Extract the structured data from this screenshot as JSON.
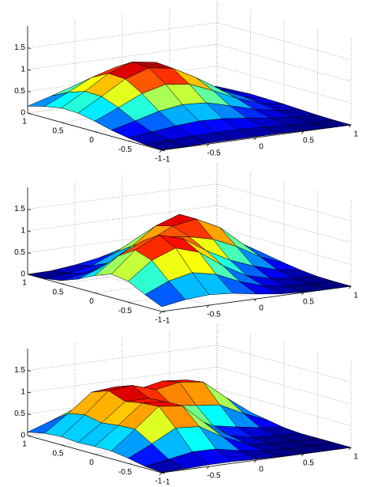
{
  "chart_data": [
    {
      "type": "surface",
      "x": [
        -1,
        -0.75,
        -0.5,
        -0.25,
        0,
        0.25,
        0.5,
        0.75,
        1
      ],
      "y": [
        -1,
        -0.75,
        -0.5,
        -0.25,
        0,
        0.25,
        0.5,
        0.75,
        1
      ],
      "z": [
        [
          0.01,
          0.02,
          0.07,
          0.14,
          0.24,
          0.32,
          0.33,
          0.26,
          0.16
        ],
        [
          0.01,
          0.05,
          0.13,
          0.28,
          0.48,
          0.63,
          0.64,
          0.51,
          0.32
        ],
        [
          0.02,
          0.07,
          0.2,
          0.43,
          0.73,
          0.96,
          0.98,
          0.78,
          0.49
        ],
        [
          0.02,
          0.08,
          0.24,
          0.51,
          0.87,
          1.14,
          1.17,
          0.94,
          0.58
        ],
        [
          0.02,
          0.08,
          0.22,
          0.48,
          0.8,
          1.06,
          1.09,
          0.87,
          0.54
        ],
        [
          0.02,
          0.06,
          0.16,
          0.34,
          0.58,
          0.77,
          0.78,
          0.63,
          0.39
        ],
        [
          0.01,
          0.03,
          0.09,
          0.19,
          0.33,
          0.43,
          0.44,
          0.35,
          0.22
        ],
        [
          0,
          0.01,
          0.04,
          0.08,
          0.14,
          0.19,
          0.19,
          0.15,
          0.1
        ],
        [
          0,
          0,
          0.01,
          0.03,
          0.05,
          0.06,
          0.07,
          0.05,
          0.03
        ]
      ],
      "xlim": [
        -1,
        1
      ],
      "ylim": [
        -1,
        1
      ],
      "zlim": [
        0,
        2
      ],
      "xticks": [
        -1,
        -0.5,
        0,
        0.5,
        1
      ],
      "yticks": [
        -1,
        -0.5,
        0,
        0.5,
        1
      ],
      "zticks": [
        0,
        0.5,
        1,
        1.5
      ],
      "grid": true,
      "colormap": "jet"
    },
    {
      "type": "surface",
      "x": [
        -1,
        -0.75,
        -0.5,
        -0.25,
        0,
        0.25,
        0.5,
        0.75,
        1
      ],
      "y": [
        -1,
        -0.75,
        -0.5,
        -0.25,
        0,
        0.25,
        0.5,
        0.75,
        1
      ],
      "z": [
        [
          0.11,
          0.28,
          0.48,
          0.54,
          0.4,
          0.21,
          0.07,
          0.01,
          0
        ],
        [
          0.2,
          0.52,
          0.89,
          1.02,
          0.78,
          0.41,
          0.16,
          0.06,
          0.01
        ],
        [
          0.24,
          0.64,
          1.1,
          1.29,
          1.04,
          0.64,
          0.33,
          0.16,
          0.07
        ],
        [
          0.2,
          0.53,
          0.93,
          1.14,
          1.07,
          0.87,
          0.65,
          0.39,
          0.16
        ],
        [
          0.11,
          0.29,
          0.55,
          0.79,
          1,
          1.14,
          1.04,
          0.68,
          0.31
        ],
        [
          0.04,
          0.12,
          0.25,
          0.5,
          0.87,
          1.23,
          1.23,
          0.83,
          0.38
        ],
        [
          0.01,
          0.03,
          0.11,
          0.29,
          0.63,
          0.96,
          0.99,
          0.67,
          0.31
        ],
        [
          0,
          0.01,
          0.04,
          0.13,
          0.32,
          0.5,
          0.53,
          0.36,
          0.16
        ],
        [
          0,
          0,
          0.01,
          0.05,
          0.11,
          0.18,
          0.18,
          0.13,
          0.06
        ]
      ],
      "xlim": [
        -1,
        1
      ],
      "ylim": [
        -1,
        1
      ],
      "zlim": [
        0,
        2
      ],
      "xticks": [
        -1,
        -0.5,
        0,
        0.5,
        1
      ],
      "yticks": [
        -1,
        -0.5,
        0,
        0.5,
        1
      ],
      "zticks": [
        0,
        0.5,
        1,
        1.5
      ],
      "grid": true,
      "colormap": "jet"
    },
    {
      "type": "surface",
      "x": [
        -1,
        -0.75,
        -0.5,
        -0.25,
        0,
        0.25,
        0.5,
        0.75,
        1
      ],
      "y": [
        -1,
        -0.75,
        -0.5,
        -0.25,
        0,
        0.25,
        0.5,
        0.75,
        1
      ],
      "z": [
        [
          0.01,
          0.04,
          0.12,
          0.18,
          0.18,
          0.16,
          0.19,
          0.16,
          0.08
        ],
        [
          0.02,
          0.13,
          0.38,
          0.61,
          0.59,
          0.54,
          0.62,
          0.54,
          0.27
        ],
        [
          0.04,
          0.23,
          0.67,
          1.06,
          1.03,
          0.96,
          1.1,
          0.96,
          0.48
        ],
        [
          0.04,
          0.22,
          0.63,
          1,
          0.99,
          0.96,
          1.15,
          1.01,
          0.5
        ],
        [
          0.02,
          0.11,
          0.32,
          0.51,
          0.57,
          0.72,
          0.98,
          0.89,
          0.44
        ],
        [
          0.01,
          0.03,
          0.09,
          0.17,
          0.29,
          0.65,
          1.08,
          1,
          0.5
        ],
        [
          0,
          0,
          0.01,
          0.05,
          0.19,
          0.59,
          1.01,
          0.95,
          0.48
        ],
        [
          0,
          0,
          0,
          0.02,
          0.1,
          0.32,
          0.57,
          0.53,
          0.27
        ],
        [
          0,
          0,
          0,
          0,
          0.03,
          0.1,
          0.17,
          0.16,
          0.08
        ]
      ],
      "xlim": [
        -1,
        1
      ],
      "ylim": [
        -1,
        1
      ],
      "zlim": [
        0,
        2
      ],
      "xticks": [
        -1,
        -0.5,
        0,
        0.5,
        1
      ],
      "yticks": [
        -1,
        -0.5,
        0,
        0.5,
        1
      ],
      "zticks": [
        0,
        0.5,
        1,
        1.5
      ],
      "grid": true,
      "colormap": "jet"
    }
  ]
}
